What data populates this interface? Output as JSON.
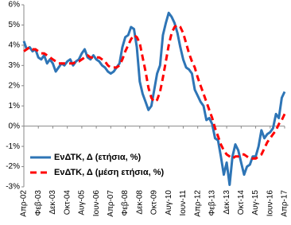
{
  "chart_data": {
    "type": "line",
    "categories": [
      "Απρ-02",
      null,
      null,
      null,
      null,
      "Φεβ-03",
      null,
      null,
      null,
      null,
      "Δεκ-03",
      null,
      null,
      null,
      null,
      "Οκτ-04",
      null,
      null,
      null,
      null,
      "Αυγ-05",
      null,
      null,
      null,
      null,
      "Ιουν-06",
      null,
      null,
      null,
      null,
      "Απρ-07",
      null,
      null,
      null,
      null,
      "Φεβ-08",
      null,
      null,
      null,
      null,
      "Δεκ-08",
      null,
      null,
      null,
      null,
      "Οκτ-09",
      null,
      null,
      null,
      null,
      "Αυγ-10",
      null,
      null,
      null,
      null,
      "Ιουν-11",
      null,
      null,
      null,
      null,
      "Απρ-12",
      null,
      null,
      null,
      null,
      "Φεβ-13",
      null,
      null,
      null,
      null,
      "Δεκ-13",
      null,
      null,
      null,
      null,
      "Οκτ-14",
      null,
      null,
      null,
      null,
      "Αυγ-15",
      null,
      null,
      null,
      null,
      "Ιουν-16",
      null,
      null,
      null,
      null,
      "Απρ-17"
    ],
    "series": [
      {
        "name": "ΕνΔΤΚ, Δ (ετήσια, %)",
        "color": "#2e75b6",
        "dashed": false,
        "values": [
          4.2,
          3.8,
          3.9,
          3.7,
          3.8,
          3.4,
          3.3,
          3.5,
          3.1,
          3.3,
          3.1,
          2.7,
          2.9,
          3.1,
          3.0,
          3.2,
          3.3,
          3.0,
          3.2,
          3.3,
          3.6,
          3.8,
          3.4,
          3.3,
          3.5,
          3.3,
          3.2,
          3.0,
          2.9,
          2.7,
          2.6,
          2.7,
          2.9,
          3.1,
          3.9,
          4.4,
          4.5,
          4.9,
          4.8,
          3.9,
          2.2,
          1.6,
          1.2,
          0.8,
          1.0,
          1.8,
          2.6,
          3.0,
          4.5,
          5.1,
          5.6,
          5.4,
          5.1,
          4.6,
          3.9,
          3.3,
          2.9,
          2.8,
          2.6,
          1.8,
          1.5,
          1.2,
          1.0,
          0.3,
          0.4,
          0.1,
          -0.6,
          -0.7,
          -1.5,
          -2.4,
          -1.8,
          -2.9,
          -1.5,
          -0.9,
          -1.2,
          -1.8,
          -2.4,
          -2.0,
          -1.9,
          -1.5,
          -1.5,
          -1.0,
          -0.2,
          -0.6,
          -0.4,
          -0.3,
          -0.1,
          0.6,
          0.4,
          1.4,
          1.7
        ]
      },
      {
        "name": "ΕνΔΤΚ, Δ (μέση ετήσια, %)",
        "color": "#ff0000",
        "dashed": true,
        "values": [
          3.7,
          3.8,
          3.9,
          3.8,
          3.8,
          3.7,
          3.6,
          3.6,
          3.5,
          3.4,
          3.3,
          3.2,
          3.1,
          3.1,
          3.1,
          3.1,
          3.1,
          3.1,
          3.2,
          3.2,
          3.3,
          3.4,
          3.5,
          3.4,
          3.4,
          3.4,
          3.4,
          3.3,
          3.2,
          3.0,
          2.9,
          2.9,
          2.9,
          3.0,
          3.3,
          3.7,
          4.0,
          4.3,
          4.5,
          4.4,
          4.1,
          3.4,
          2.7,
          1.9,
          1.4,
          1.2,
          1.3,
          1.7,
          2.4,
          3.2,
          4.0,
          4.6,
          4.9,
          5.0,
          4.9,
          4.6,
          4.1,
          3.6,
          3.2,
          2.9,
          2.4,
          2.0,
          1.6,
          1.2,
          0.8,
          0.4,
          -0.1,
          -0.5,
          -0.9,
          -1.2,
          -1.4,
          -1.5,
          -1.6,
          -1.5,
          -1.5,
          -1.4,
          -1.4,
          -1.5,
          -1.6,
          -1.6,
          -1.6,
          -1.5,
          -1.4,
          -1.1,
          -0.8,
          -0.6,
          -0.4,
          -0.2,
          0.1,
          0.3,
          0.6
        ]
      }
    ],
    "ylim": [
      -3,
      6
    ],
    "yticks": [
      {
        "value": -3,
        "label": "-3%"
      },
      {
        "value": -2,
        "label": "-2%"
      },
      {
        "value": -1,
        "label": "-1%"
      },
      {
        "value": 0,
        "label": "0%"
      },
      {
        "value": 1,
        "label": "1%"
      },
      {
        "value": 2,
        "label": "2%"
      },
      {
        "value": 3,
        "label": "3%"
      },
      {
        "value": 4,
        "label": "4%"
      },
      {
        "value": 5,
        "label": "5%"
      },
      {
        "value": 6,
        "label": "6%"
      }
    ],
    "grid": false,
    "legend": "lower-left"
  }
}
